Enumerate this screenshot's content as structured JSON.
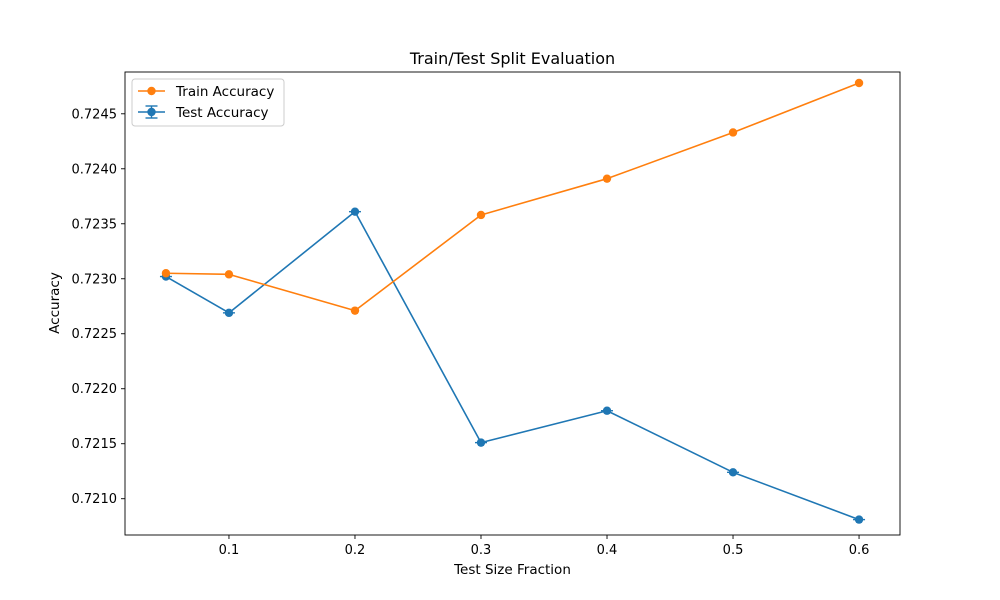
{
  "chart_data": {
    "type": "line",
    "title": "Train/Test Split Evaluation",
    "xlabel": "Test Size Fraction",
    "ylabel": "Accuracy",
    "x": [
      0.05,
      0.1,
      0.2,
      0.3,
      0.4,
      0.5,
      0.6
    ],
    "xlim": [
      0.0175,
      0.6325
    ],
    "ylim": [
      0.72067,
      0.72488
    ],
    "xticks": [
      0.1,
      0.2,
      0.3,
      0.4,
      0.5,
      0.6
    ],
    "xtick_labels": [
      "0.1",
      "0.2",
      "0.3",
      "0.4",
      "0.5",
      "0.6"
    ],
    "yticks": [
      0.721,
      0.7215,
      0.722,
      0.7225,
      0.723,
      0.7235,
      0.724,
      0.7245
    ],
    "ytick_labels": [
      "0.7210",
      "0.7215",
      "0.7220",
      "0.7225",
      "0.7230",
      "0.7235",
      "0.7240",
      "0.7245"
    ],
    "grid": false,
    "legend_position": "top-left",
    "series": [
      {
        "name": "Train Accuracy",
        "color": "#ff7f0e",
        "marker": "circle",
        "error_bars": false,
        "values": [
          0.72305,
          0.72304,
          0.72271,
          0.72358,
          0.72391,
          0.72433,
          0.72478
        ]
      },
      {
        "name": "Test Accuracy",
        "color": "#1f77b4",
        "marker": "circle",
        "error_bars": true,
        "errors": [
          2.5e-06,
          2.5e-06,
          2.5e-06,
          2.5e-06,
          2.5e-06,
          2.5e-06,
          2.5e-06
        ],
        "values": [
          0.72302,
          0.72269,
          0.72361,
          0.72151,
          0.7218,
          0.72124,
          0.72081
        ]
      }
    ]
  }
}
